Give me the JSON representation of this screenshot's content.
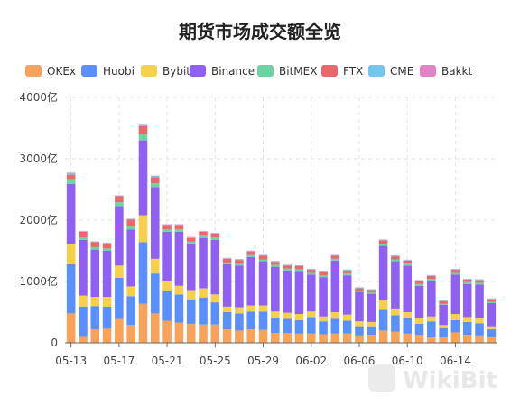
{
  "chart_data": {
    "type": "bar",
    "stacked": true,
    "title": "期货市场成交额全览",
    "xlabel": "",
    "ylabel": "",
    "ylim": [
      0,
      4000
    ],
    "y_ticks": [
      "0",
      "1000亿",
      "2000亿",
      "3000亿",
      "4000亿"
    ],
    "y_tick_values": [
      0,
      1000,
      2000,
      3000,
      4000
    ],
    "x_tick_labels": [
      "05-13",
      "05-17",
      "05-21",
      "05-25",
      "05-29",
      "06-02",
      "06-06",
      "06-10",
      "06-14"
    ],
    "x_tick_indices": [
      0,
      4,
      8,
      12,
      16,
      20,
      24,
      28,
      32
    ],
    "grid": true,
    "legend_position": "top",
    "categories": [
      "05-13",
      "05-14",
      "05-15",
      "05-16",
      "05-17",
      "05-18",
      "05-19",
      "05-20",
      "05-21",
      "05-22",
      "05-23",
      "05-24",
      "05-25",
      "05-26",
      "05-27",
      "05-28",
      "05-29",
      "05-30",
      "05-31",
      "06-01",
      "06-02",
      "06-03",
      "06-04",
      "06-05",
      "06-06",
      "06-07",
      "06-08",
      "06-09",
      "06-10",
      "06-11",
      "06-12",
      "06-13",
      "06-14",
      "06-15",
      "06-16",
      "06-17"
    ],
    "series": [
      {
        "name": "OKEx",
        "color": "#f7a35c",
        "values": [
          480,
          110,
          220,
          230,
          390,
          290,
          640,
          480,
          360,
          330,
          310,
          300,
          300,
          220,
          200,
          220,
          210,
          160,
          160,
          150,
          150,
          140,
          150,
          150,
          120,
          130,
          200,
          180,
          150,
          130,
          100,
          90,
          170,
          130,
          120,
          100
        ]
      },
      {
        "name": "Huobi",
        "color": "#5b8ff9",
        "values": [
          800,
          480,
          380,
          360,
          670,
          470,
          1000,
          650,
          490,
          460,
          400,
          440,
          360,
          280,
          280,
          290,
          300,
          250,
          230,
          220,
          270,
          210,
          240,
          210,
          150,
          140,
          340,
          270,
          250,
          180,
          250,
          150,
          200,
          210,
          200,
          120
        ]
      },
      {
        "name": "Bybit",
        "color": "#f6d04d",
        "values": [
          330,
          180,
          150,
          160,
          200,
          160,
          440,
          240,
          160,
          140,
          150,
          150,
          130,
          90,
          100,
          100,
          100,
          100,
          100,
          100,
          90,
          80,
          110,
          100,
          80,
          70,
          150,
          110,
          100,
          100,
          80,
          50,
          100,
          80,
          80,
          50
        ]
      },
      {
        "name": "Binance",
        "color": "#9061f0",
        "values": [
          980,
          910,
          770,
          750,
          970,
          930,
          1220,
          1170,
          800,
          880,
          760,
          820,
          890,
          690,
          680,
          790,
          720,
          730,
          690,
          700,
          600,
          640,
          840,
          640,
          480,
          460,
          890,
          770,
          760,
          520,
          580,
          330,
          640,
          540,
          550,
          380
        ]
      },
      {
        "name": "BitMEX",
        "color": "#6dd3a0",
        "values": [
          80,
          40,
          40,
          40,
          60,
          50,
          100,
          60,
          40,
          40,
          30,
          40,
          40,
          30,
          30,
          30,
          30,
          30,
          30,
          30,
          30,
          30,
          30,
          30,
          20,
          20,
          30,
          30,
          30,
          30,
          30,
          20,
          30,
          30,
          30,
          20
        ]
      },
      {
        "name": "FTX",
        "color": "#e8686c",
        "values": [
          70,
          90,
          80,
          80,
          100,
          110,
          130,
          100,
          70,
          70,
          60,
          60,
          60,
          60,
          60,
          60,
          60,
          50,
          50,
          50,
          50,
          60,
          50,
          50,
          40,
          40,
          60,
          50,
          50,
          50,
          50,
          40,
          50,
          40,
          40,
          40
        ]
      },
      {
        "name": "CME",
        "color": "#73c6ec",
        "values": [
          30,
          10,
          10,
          10,
          10,
          10,
          20,
          20,
          10,
          10,
          10,
          10,
          10,
          10,
          10,
          10,
          10,
          10,
          10,
          10,
          10,
          10,
          10,
          10,
          10,
          10,
          10,
          10,
          10,
          10,
          10,
          10,
          10,
          10,
          10,
          10
        ]
      },
      {
        "name": "Bakkt",
        "color": "#e382c4",
        "values": [
          5,
          5,
          5,
          5,
          5,
          5,
          5,
          5,
          5,
          5,
          5,
          5,
          5,
          5,
          5,
          5,
          5,
          5,
          5,
          5,
          5,
          5,
          5,
          5,
          5,
          5,
          5,
          5,
          5,
          5,
          5,
          5,
          5,
          5,
          5,
          5
        ]
      }
    ]
  },
  "watermark": {
    "text": "WikiBit"
  }
}
